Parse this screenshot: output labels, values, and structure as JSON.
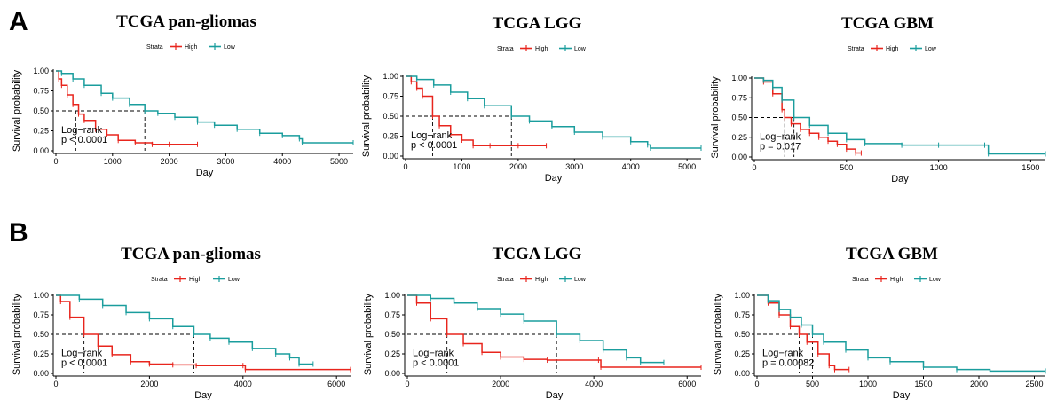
{
  "panels": {
    "a": "A",
    "b": "B"
  },
  "colors": {
    "high": "#e8251d",
    "low": "#1a9d9d"
  },
  "chart_data": [
    {
      "type": "line",
      "title": "TCGA pan-gliomas",
      "legend_title": "Strata",
      "legend": [
        "High",
        "Low"
      ],
      "xlabel": "Day",
      "ylabel": "Survival probability",
      "xlim": [
        0,
        5250
      ],
      "ylim": [
        0,
        1
      ],
      "xticks": [
        0,
        1000,
        2000,
        3000,
        4000,
        5000
      ],
      "yticks": [
        "0.00",
        "0.25",
        "0.50",
        "0.75",
        "1.00"
      ],
      "annotation": [
        "Log−rank",
        "p < 0.0001"
      ],
      "medians": {
        "High": 350,
        "Low": 1570
      },
      "series": [
        {
          "name": "High",
          "x": [
            0,
            50,
            100,
            200,
            300,
            400,
            500,
            700,
            900,
            1100,
            1400,
            1700,
            2000,
            2500
          ],
          "y": [
            1.0,
            0.9,
            0.82,
            0.7,
            0.58,
            0.46,
            0.38,
            0.27,
            0.2,
            0.13,
            0.1,
            0.08,
            0.08,
            0.08
          ]
        },
        {
          "name": "Low",
          "x": [
            0,
            100,
            300,
            500,
            800,
            1000,
            1300,
            1570,
            1800,
            2100,
            2500,
            2800,
            3200,
            3600,
            4000,
            4300,
            4350,
            5250
          ],
          "y": [
            1.0,
            0.97,
            0.9,
            0.82,
            0.72,
            0.66,
            0.58,
            0.5,
            0.47,
            0.42,
            0.36,
            0.32,
            0.27,
            0.22,
            0.19,
            0.15,
            0.1,
            0.1
          ]
        }
      ]
    },
    {
      "type": "line",
      "title": "TCGA LGG",
      "legend_title": "Strata",
      "legend": [
        "High",
        "Low"
      ],
      "xlabel": "Day",
      "ylabel": "Survival probability",
      "xlim": [
        0,
        5250
      ],
      "ylim": [
        0,
        1
      ],
      "xticks": [
        0,
        1000,
        2000,
        3000,
        4000,
        5000
      ],
      "yticks": [
        "0.00",
        "0.25",
        "0.50",
        "0.75",
        "1.00"
      ],
      "annotation": [
        "Log−rank",
        "p < 0.0001"
      ],
      "medians": {
        "High": 480,
        "Low": 1880
      },
      "series": [
        {
          "name": "High",
          "x": [
            0,
            100,
            200,
            300,
            480,
            600,
            800,
            1000,
            1200,
            1500,
            2000,
            2500
          ],
          "y": [
            1.0,
            0.93,
            0.85,
            0.75,
            0.5,
            0.38,
            0.27,
            0.2,
            0.13,
            0.13,
            0.13,
            0.13
          ]
        },
        {
          "name": "Low",
          "x": [
            0,
            200,
            500,
            800,
            1100,
            1400,
            1880,
            2200,
            2600,
            3000,
            3500,
            4000,
            4300,
            4350,
            5250
          ],
          "y": [
            1.0,
            0.96,
            0.89,
            0.8,
            0.72,
            0.63,
            0.5,
            0.44,
            0.37,
            0.3,
            0.24,
            0.18,
            0.14,
            0.1,
            0.1
          ]
        }
      ]
    },
    {
      "type": "line",
      "title": "TCGA GBM",
      "legend_title": "Strata",
      "legend": [
        "High",
        "Low"
      ],
      "xlabel": "Day",
      "ylabel": "Survival probability",
      "xlim": [
        0,
        1580
      ],
      "ylim": [
        0,
        1
      ],
      "xticks": [
        0,
        500,
        1000,
        1500
      ],
      "yticks": [
        "0.00",
        "0.25",
        "0.50",
        "0.75",
        "1.00"
      ],
      "annotation": [
        "Log−rank",
        "p = 0.017"
      ],
      "medians": {
        "High": 165,
        "Low": 215
      },
      "series": [
        {
          "name": "High",
          "x": [
            0,
            50,
            100,
            150,
            165,
            200,
            250,
            300,
            350,
            400,
            450,
            500,
            550,
            580
          ],
          "y": [
            1.0,
            0.95,
            0.8,
            0.6,
            0.5,
            0.42,
            0.35,
            0.3,
            0.25,
            0.2,
            0.16,
            0.1,
            0.05,
            0.05
          ]
        },
        {
          "name": "Low",
          "x": [
            0,
            50,
            100,
            150,
            215,
            300,
            400,
            500,
            600,
            800,
            1000,
            1250,
            1270,
            1580
          ],
          "y": [
            1.0,
            0.97,
            0.88,
            0.72,
            0.5,
            0.4,
            0.3,
            0.22,
            0.17,
            0.15,
            0.15,
            0.15,
            0.04,
            0.04
          ]
        }
      ]
    },
    {
      "type": "line",
      "title": "TCGA pan-gliomas",
      "legend_title": "Strata",
      "legend": [
        "High",
        "Low"
      ],
      "xlabel": "Day",
      "ylabel": "Survival probability",
      "xlim": [
        0,
        6300
      ],
      "ylim": [
        0,
        1
      ],
      "xticks": [
        0,
        2000,
        4000,
        6000
      ],
      "yticks": [
        "0.00",
        "0.25",
        "0.50",
        "0.75",
        "1.00"
      ],
      "annotation": [
        "Log−rank",
        "p < 0.0001"
      ],
      "medians": {
        "High": 600,
        "Low": 2950
      },
      "series": [
        {
          "name": "High",
          "x": [
            0,
            100,
            300,
            600,
            900,
            1200,
            1600,
            2000,
            2500,
            3000,
            4000,
            4050,
            6300
          ],
          "y": [
            1.0,
            0.92,
            0.72,
            0.5,
            0.35,
            0.24,
            0.15,
            0.12,
            0.11,
            0.1,
            0.1,
            0.05,
            0.05
          ]
        },
        {
          "name": "Low",
          "x": [
            0,
            500,
            1000,
            1500,
            2000,
            2500,
            2950,
            3300,
            3700,
            4200,
            4700,
            5000,
            5200,
            5500
          ],
          "y": [
            1.0,
            0.95,
            0.87,
            0.78,
            0.7,
            0.6,
            0.5,
            0.45,
            0.4,
            0.32,
            0.25,
            0.2,
            0.12,
            0.12
          ]
        }
      ]
    },
    {
      "type": "line",
      "title": "TCGA LGG",
      "legend_title": "Strata",
      "legend": [
        "High",
        "Low"
      ],
      "xlabel": "Day",
      "ylabel": "Survival probability",
      "xlim": [
        0,
        6300
      ],
      "ylim": [
        0,
        1
      ],
      "xticks": [
        0,
        2000,
        4000,
        6000
      ],
      "yticks": [
        "0.00",
        "0.25",
        "0.50",
        "0.75",
        "1.00"
      ],
      "annotation": [
        "Log−rank",
        "p < 0.0001"
      ],
      "medians": {
        "High": 850,
        "Low": 3200
      },
      "series": [
        {
          "name": "High",
          "x": [
            0,
            200,
            500,
            850,
            1200,
            1600,
            2000,
            2500,
            3000,
            4100,
            4150,
            6300
          ],
          "y": [
            1.0,
            0.9,
            0.7,
            0.5,
            0.38,
            0.27,
            0.21,
            0.18,
            0.17,
            0.17,
            0.08,
            0.08
          ]
        },
        {
          "name": "Low",
          "x": [
            0,
            500,
            1000,
            1500,
            2000,
            2500,
            3200,
            3700,
            4200,
            4700,
            5000,
            5500
          ],
          "y": [
            1.0,
            0.96,
            0.9,
            0.83,
            0.76,
            0.67,
            0.5,
            0.42,
            0.3,
            0.2,
            0.14,
            0.14
          ]
        }
      ]
    },
    {
      "type": "line",
      "title": "TCGA GBM",
      "legend_title": "Strata",
      "legend": [
        "High",
        "Low"
      ],
      "xlabel": "Day",
      "ylabel": "Survival probability",
      "xlim": [
        0,
        2600
      ],
      "ylim": [
        0,
        1
      ],
      "xticks": [
        0,
        500,
        1000,
        1500,
        2000,
        2500
      ],
      "yticks": [
        "0.00",
        "0.25",
        "0.50",
        "0.75",
        "1.00"
      ],
      "annotation": [
        "Log−rank",
        "p = 0.00082"
      ],
      "medians": {
        "High": 380,
        "Low": 500
      },
      "series": [
        {
          "name": "High",
          "x": [
            0,
            100,
            200,
            300,
            380,
            450,
            550,
            650,
            700,
            830
          ],
          "y": [
            1.0,
            0.9,
            0.75,
            0.6,
            0.5,
            0.4,
            0.25,
            0.1,
            0.05,
            0.05
          ]
        },
        {
          "name": "Low",
          "x": [
            0,
            100,
            200,
            300,
            400,
            500,
            600,
            800,
            1000,
            1200,
            1500,
            1800,
            2100,
            2600
          ],
          "y": [
            1.0,
            0.93,
            0.82,
            0.72,
            0.62,
            0.5,
            0.4,
            0.3,
            0.2,
            0.15,
            0.08,
            0.05,
            0.03,
            0.03
          ]
        }
      ]
    }
  ]
}
